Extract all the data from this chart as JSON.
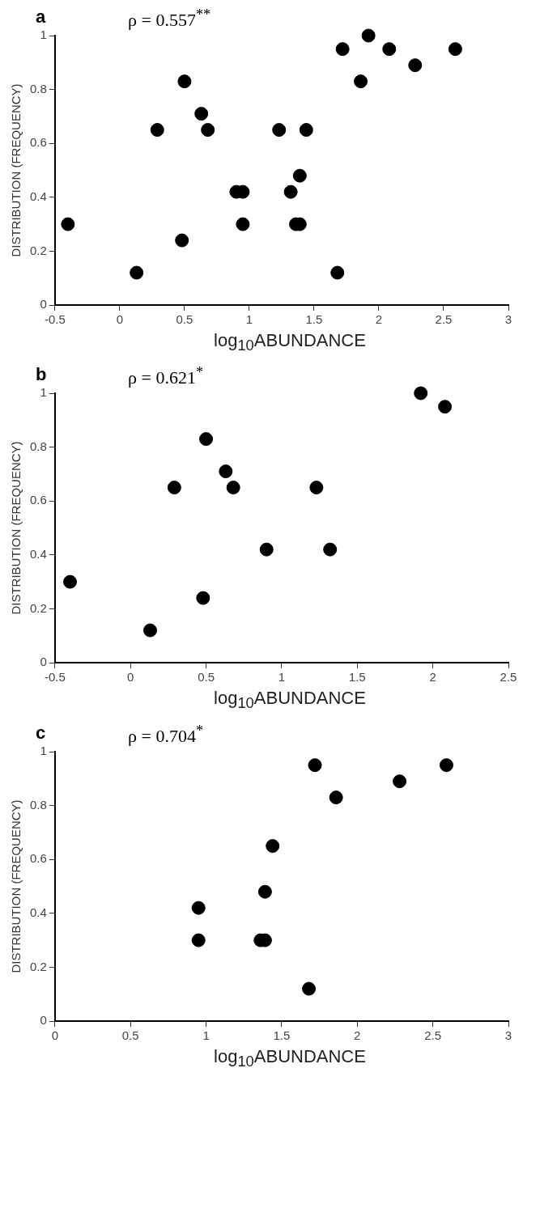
{
  "chart_data": [
    {
      "type": "scatter",
      "xlabel": "log$_{10}$ABUNDANCE",
      "ylabel": "DISTRIBUTION (FREQUENCY)",
      "annotations": [
        "a",
        "ρ = 0.557$^{**}$"
      ],
      "color": "#000000",
      "marker": "circle",
      "grid": false,
      "x": [
        -0.4,
        0.13,
        0.29,
        0.5,
        0.48,
        0.63,
        0.68,
        0.9,
        0.95,
        0.95,
        1.23,
        1.44,
        1.32,
        1.39,
        1.36,
        1.39,
        1.68,
        1.72,
        1.86,
        1.92,
        2.08,
        2.28,
        2.59
      ],
      "values": [
        0.3,
        0.12,
        0.65,
        0.83,
        0.24,
        0.71,
        0.65,
        0.42,
        0.42,
        0.3,
        0.65,
        0.65,
        0.42,
        0.48,
        0.3,
        0.3,
        0.12,
        0.95,
        0.83,
        1.0,
        0.95,
        0.89,
        0.95
      ],
      "xlim": [
        -0.5,
        3
      ],
      "xticks": [
        -0.5,
        0,
        0.5,
        1,
        1.5,
        2,
        2.5,
        3
      ],
      "ylim": [
        0,
        1
      ],
      "yticks": [
        0,
        0.2,
        0.4,
        0.6,
        0.8,
        1
      ]
    },
    {
      "type": "scatter",
      "xlabel": "log$_{10}$ABUNDANCE",
      "ylabel": "DISTRIBUTION (FREQUENCY)",
      "annotations": [
        "b",
        "ρ = 0.621$^{*}$"
      ],
      "color": "#000000",
      "marker": "circle",
      "grid": false,
      "x": [
        -0.4,
        0.13,
        0.29,
        0.5,
        0.48,
        0.63,
        0.68,
        0.9,
        1.32,
        1.23,
        1.92,
        2.08
      ],
      "values": [
        0.3,
        0.12,
        0.65,
        0.83,
        0.24,
        0.71,
        0.65,
        0.42,
        0.42,
        0.65,
        1.0,
        0.95
      ],
      "xlim": [
        -0.5,
        2.5
      ],
      "xticks": [
        -0.5,
        0,
        0.5,
        1,
        1.5,
        2,
        2.5
      ],
      "ylim": [
        0,
        1
      ],
      "yticks": [
        0,
        0.2,
        0.4,
        0.6,
        0.8,
        1
      ]
    },
    {
      "type": "scatter",
      "xlabel": "log$_{10}$ABUNDANCE",
      "ylabel": "DISTRIBUTION (FREQUENCY)",
      "annotations": [
        "c",
        "ρ = 0.704$^{*}$"
      ],
      "color": "#000000",
      "marker": "circle",
      "grid": false,
      "x": [
        0.95,
        0.95,
        1.36,
        1.39,
        1.39,
        1.44,
        1.68,
        1.72,
        1.86,
        2.28,
        2.59
      ],
      "values": [
        0.42,
        0.3,
        0.3,
        0.3,
        0.48,
        0.65,
        0.12,
        0.95,
        0.83,
        0.89,
        0.95
      ],
      "xlim": [
        0,
        3
      ],
      "xticks": [
        0,
        0.5,
        1,
        1.5,
        2,
        2.5,
        3
      ],
      "ylim": [
        0,
        1
      ],
      "yticks": [
        0,
        0.2,
        0.4,
        0.6,
        0.8,
        1
      ]
    }
  ]
}
